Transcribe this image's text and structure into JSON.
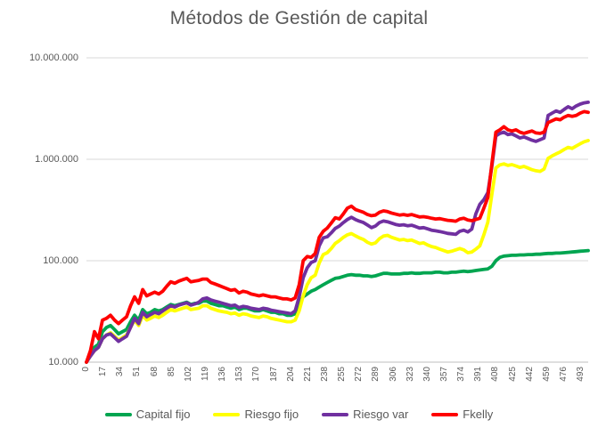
{
  "chart_data": {
    "type": "line",
    "title": "Métodos de Gestión de capital",
    "xlabel": "",
    "ylabel": "",
    "y_scale": "log",
    "ylim": [
      10000,
      10000000
    ],
    "x_max": 500,
    "grid": "horizontal",
    "legend_position": "bottom",
    "y_ticks": [
      {
        "label": "10.000.000",
        "value": 10000000
      },
      {
        "label": "1.000.000",
        "value": 1000000
      },
      {
        "label": "100.000",
        "value": 100000
      },
      {
        "label": "10.000",
        "value": 10000
      }
    ],
    "x_tick_labels": [
      "0",
      "17",
      "34",
      "51",
      "68",
      "85",
      "102",
      "119",
      "136",
      "153",
      "170",
      "187",
      "204",
      "221",
      "238",
      "255",
      "272",
      "289",
      "306",
      "323",
      "340",
      "357",
      "374",
      "391",
      "408",
      "425",
      "442",
      "459",
      "476",
      "493"
    ],
    "x_tick_values": [
      0,
      17,
      34,
      51,
      68,
      85,
      102,
      119,
      136,
      153,
      170,
      187,
      204,
      221,
      238,
      255,
      272,
      289,
      306,
      323,
      340,
      357,
      374,
      391,
      408,
      425,
      442,
      459,
      476,
      493
    ],
    "x": [
      0,
      4,
      8,
      12,
      16,
      20,
      24,
      28,
      32,
      36,
      40,
      44,
      48,
      52,
      56,
      60,
      64,
      68,
      72,
      76,
      80,
      84,
      88,
      92,
      96,
      100,
      104,
      108,
      112,
      116,
      120,
      124,
      128,
      132,
      136,
      140,
      144,
      148,
      152,
      156,
      160,
      164,
      168,
      172,
      176,
      180,
      184,
      188,
      192,
      196,
      200,
      204,
      208,
      212,
      216,
      220,
      224,
      228,
      232,
      236,
      240,
      244,
      248,
      252,
      256,
      260,
      264,
      268,
      272,
      276,
      280,
      284,
      288,
      292,
      296,
      300,
      304,
      308,
      312,
      316,
      320,
      324,
      328,
      332,
      336,
      340,
      344,
      348,
      352,
      356,
      360,
      364,
      368,
      372,
      376,
      380,
      384,
      388,
      392,
      396,
      400,
      404,
      408,
      412,
      416,
      420,
      424,
      428,
      432,
      436,
      440,
      444,
      448,
      452,
      456,
      460,
      464,
      468,
      472,
      476,
      480,
      484,
      488,
      492,
      496,
      500
    ],
    "series": [
      {
        "name": "Capital fijo",
        "color": "#00A550",
        "values": [
          10000,
          12000,
          14000,
          15000,
          20000,
          22000,
          23000,
          21000,
          19000,
          20000,
          21000,
          25000,
          29000,
          26000,
          33000,
          30000,
          31000,
          33000,
          32000,
          33000,
          35000,
          37000,
          36000,
          37000,
          38000,
          39000,
          37000,
          38000,
          38000,
          40000,
          40000,
          38000,
          37000,
          36000,
          36000,
          35000,
          34000,
          35000,
          33000,
          34000,
          34000,
          33000,
          32000,
          32000,
          33000,
          32000,
          31000,
          31000,
          30000,
          30000,
          29000,
          29000,
          30000,
          38000,
          44000,
          47000,
          50000,
          52000,
          55000,
          58000,
          61000,
          64000,
          67000,
          68000,
          70000,
          72000,
          73000,
          72000,
          72000,
          71000,
          71000,
          70000,
          71000,
          73000,
          75000,
          75000,
          74000,
          74000,
          74000,
          75000,
          75000,
          76000,
          75000,
          75000,
          76000,
          76000,
          76000,
          77000,
          77000,
          76000,
          76000,
          77000,
          77000,
          78000,
          79000,
          78000,
          79000,
          80000,
          81000,
          82000,
          83000,
          88000,
          100000,
          108000,
          111000,
          112000,
          113000,
          113000,
          114000,
          114000,
          115000,
          115000,
          116000,
          116000,
          117000,
          118000,
          118000,
          119000,
          119000,
          120000,
          121000,
          122000,
          123000,
          124000,
          125000,
          126000
        ]
      },
      {
        "name": "Riesgo fijo",
        "color": "#FFFF00",
        "values": [
          10000,
          11500,
          13000,
          14000,
          17000,
          18500,
          19500,
          18000,
          16500,
          17500,
          18500,
          22000,
          26000,
          23000,
          29000,
          26000,
          27000,
          28500,
          27500,
          29000,
          31000,
          33000,
          32000,
          33000,
          34000,
          35000,
          33000,
          33500,
          34000,
          36000,
          36000,
          34000,
          33000,
          32000,
          31500,
          31000,
          30000,
          30500,
          29000,
          30000,
          29500,
          28500,
          28000,
          27500,
          28500,
          28000,
          27000,
          26500,
          26000,
          25500,
          25000,
          25000,
          26000,
          32000,
          45000,
          58000,
          68000,
          72000,
          95000,
          115000,
          120000,
          132000,
          148000,
          158000,
          170000,
          180000,
          185000,
          176000,
          168000,
          162000,
          152000,
          146000,
          150000,
          165000,
          175000,
          178000,
          170000,
          165000,
          160000,
          162000,
          158000,
          160000,
          154000,
          148000,
          150000,
          143000,
          138000,
          135000,
          130000,
          126000,
          122000,
          124000,
          128000,
          132000,
          128000,
          120000,
          122000,
          130000,
          140000,
          180000,
          240000,
          450000,
          820000,
          880000,
          900000,
          870000,
          885000,
          860000,
          830000,
          850000,
          820000,
          790000,
          770000,
          760000,
          800000,
          1020000,
          1080000,
          1130000,
          1180000,
          1250000,
          1310000,
          1280000,
          1350000,
          1420000,
          1490000,
          1530000
        ]
      },
      {
        "name": "Riesgo var",
        "color": "#7030A0",
        "values": [
          10000,
          11500,
          13000,
          14000,
          17000,
          18500,
          19000,
          17500,
          16000,
          17000,
          18000,
          22000,
          27000,
          24000,
          31000,
          28000,
          29500,
          31000,
          30000,
          32000,
          34000,
          36000,
          35000,
          36500,
          37500,
          38500,
          36500,
          37500,
          39000,
          42000,
          43000,
          41000,
          40000,
          39000,
          38000,
          37000,
          36000,
          36500,
          34500,
          35500,
          35000,
          34000,
          33500,
          33000,
          34000,
          33500,
          32500,
          32000,
          31500,
          31000,
          30500,
          30000,
          32000,
          44000,
          68000,
          85000,
          96000,
          100000,
          140000,
          168000,
          172000,
          188000,
          208000,
          220000,
          238000,
          255000,
          268000,
          255000,
          245000,
          238000,
          225000,
          212000,
          220000,
          238000,
          246000,
          242000,
          235000,
          228000,
          224000,
          226000,
          221000,
          224000,
          217000,
          210000,
          212000,
          206000,
          200000,
          197000,
          194000,
          190000,
          186000,
          184000,
          182000,
          195000,
          200000,
          192000,
          205000,
          290000,
          360000,
          400000,
          470000,
          850000,
          1700000,
          1800000,
          1850000,
          1750000,
          1780000,
          1700000,
          1620000,
          1660000,
          1600000,
          1540000,
          1500000,
          1560000,
          1620000,
          2700000,
          2850000,
          3000000,
          2900000,
          3100000,
          3300000,
          3150000,
          3350000,
          3500000,
          3600000,
          3650000
        ]
      },
      {
        "name": "Fkelly",
        "color": "#FF0000",
        "values": [
          10000,
          13000,
          20000,
          17000,
          26000,
          27000,
          29000,
          26000,
          24000,
          26000,
          28000,
          36000,
          44000,
          38000,
          52000,
          45000,
          47000,
          49000,
          47000,
          50000,
          56000,
          62000,
          60000,
          63000,
          65000,
          67000,
          62000,
          63000,
          64000,
          66000,
          66000,
          61000,
          59000,
          57000,
          55000,
          53000,
          51000,
          52000,
          48000,
          50000,
          49000,
          47000,
          46000,
          45000,
          46000,
          45000,
          44000,
          44000,
          43000,
          42000,
          42000,
          41000,
          43000,
          58000,
          100000,
          110000,
          108000,
          118000,
          170000,
          195000,
          210000,
          235000,
          265000,
          258000,
          290000,
          330000,
          345000,
          320000,
          310000,
          300000,
          285000,
          278000,
          282000,
          300000,
          310000,
          305000,
          295000,
          288000,
          282000,
          285000,
          280000,
          285000,
          278000,
          270000,
          272000,
          268000,
          262000,
          258000,
          260000,
          255000,
          250000,
          248000,
          245000,
          258000,
          262000,
          252000,
          248000,
          255000,
          262000,
          330000,
          420000,
          900000,
          1850000,
          1950000,
          2100000,
          1950000,
          1900000,
          1950000,
          1850000,
          1800000,
          1850000,
          1900000,
          1820000,
          1800000,
          1850000,
          2300000,
          2400000,
          2500000,
          2450000,
          2600000,
          2700000,
          2650000,
          2700000,
          2850000,
          2950000,
          2900000
        ]
      }
    ]
  }
}
